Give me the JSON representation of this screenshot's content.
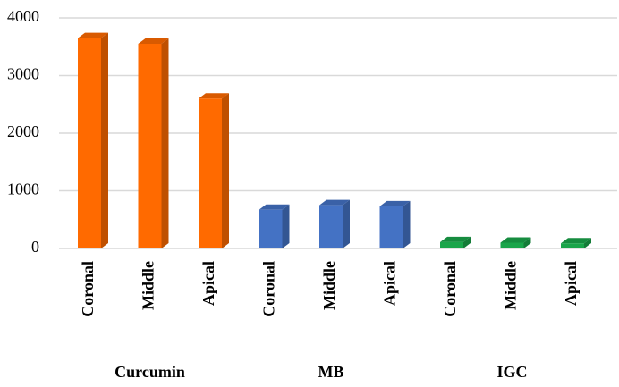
{
  "chart_data": {
    "type": "bar",
    "groups": [
      {
        "name": "Curcumin",
        "color": "#ff6a00",
        "categories": [
          "Coronal",
          "Middle",
          "Apical"
        ],
        "values": [
          3650,
          3550,
          2600
        ]
      },
      {
        "name": "MB",
        "color": "#4472c4",
        "categories": [
          "Coronal",
          "Middle",
          "Apical"
        ],
        "values": [
          670,
          750,
          730
        ]
      },
      {
        "name": "IGC",
        "color": "#1aa54a",
        "categories": [
          "Coronal",
          "Middle",
          "Apical"
        ],
        "values": [
          110,
          100,
          90
        ]
      }
    ],
    "ylim": [
      0,
      4000
    ],
    "yticks": [
      0,
      1000,
      2000,
      3000,
      4000
    ],
    "grid": true
  }
}
